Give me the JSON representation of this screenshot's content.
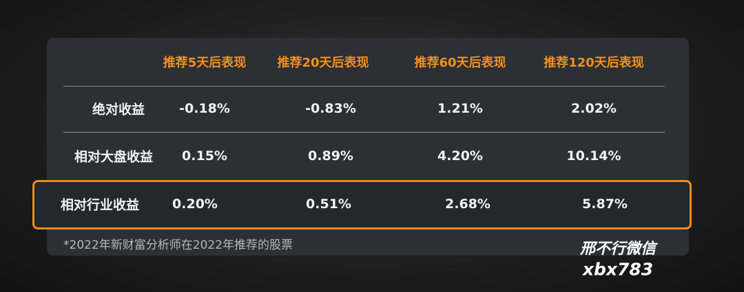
{
  "table": {
    "header": [
      "推荐5天后表现",
      "推荐20天后表现",
      "推荐60天后表现",
      "推荐120天后表现"
    ],
    "rows": [
      [
        "绝对收益",
        "-0.18%",
        "-0.83%",
        "1.21%",
        "2.02%"
      ],
      [
        "相对大盘收益",
        "0.15%",
        "0.89%",
        "4.20%",
        "10.14%"
      ],
      [
        "相对行业收益",
        "0.20%",
        "0.51%",
        "2.68%",
        "5.87%"
      ]
    ],
    "footnote": "*2022年新财富分析师在2022年推荐的股票"
  },
  "watermark": {
    "line1": "邢不行微信",
    "line2": "xbx783"
  }
}
